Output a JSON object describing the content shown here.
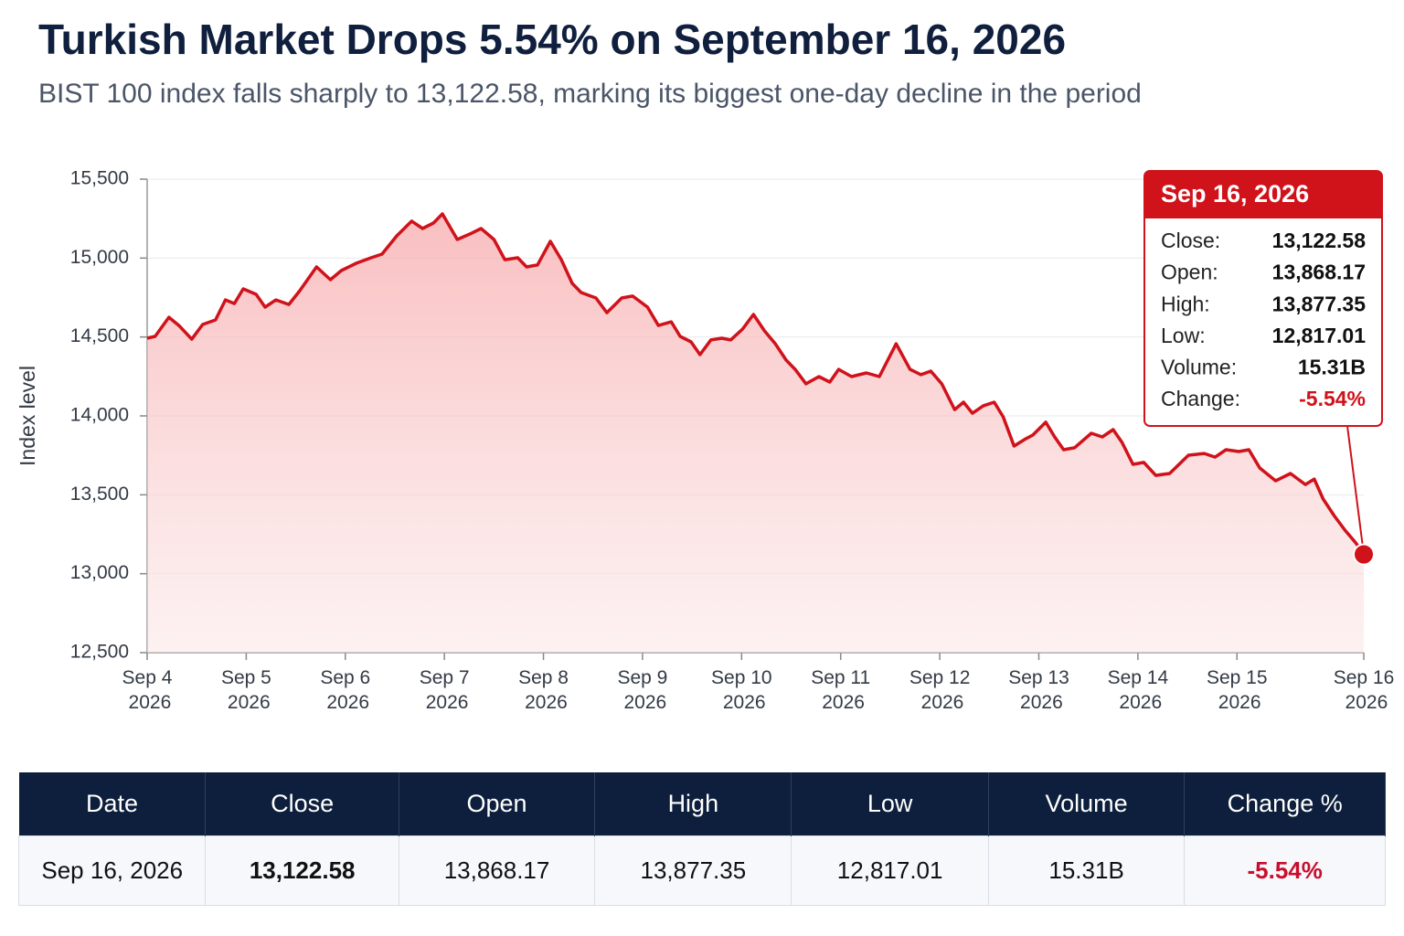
{
  "chart_data": {
    "type": "line",
    "title": "Turkish Market Drops 5.54% on September 16, 2026",
    "subtitle": "BIST 100 index falls sharply to 13,122.58, marking its biggest one-day decline in the period",
    "y_label": "Index level",
    "color": "#d0121b",
    "x": [
      0,
      0.08,
      0.22,
      0.32,
      0.45,
      0.56,
      0.69,
      0.79,
      0.88,
      0.97,
      1.1,
      1.19,
      1.3,
      1.43,
      1.54,
      1.71,
      1.85,
      1.96,
      2.11,
      2.26,
      2.37,
      2.52,
      2.67,
      2.78,
      2.89,
      2.98,
      3.13,
      3.26,
      3.37,
      3.5,
      3.61,
      3.74,
      3.83,
      3.94,
      4.07,
      4.18,
      4.29,
      4.38,
      4.53,
      4.64,
      4.79,
      4.9,
      5.05,
      5.16,
      5.29,
      5.38,
      5.49,
      5.58,
      5.69,
      5.8,
      5.89,
      6.01,
      6.12,
      6.23,
      6.34,
      6.45,
      6.54,
      6.65,
      6.78,
      6.89,
      6.98,
      7.11,
      7.26,
      7.39,
      7.56,
      7.7,
      7.81,
      7.91,
      8.02,
      8.15,
      8.24,
      8.33,
      8.44,
      8.55,
      8.64,
      8.75,
      8.87,
      8.94,
      9.07,
      9.16,
      9.25,
      9.36,
      9.53,
      9.64,
      9.75,
      9.84,
      9.95,
      10.06,
      10.18,
      10.32,
      10.51,
      10.67,
      10.78,
      10.89,
      11.02,
      11.12,
      11.23,
      11.39,
      11.54,
      11.69,
      11.78,
      11.87,
      11.98,
      12.09,
      12.2,
      12.28
    ],
    "values": [
      14492,
      14504,
      14625,
      14573,
      14486,
      14579,
      14608,
      14735,
      14712,
      14805,
      14770,
      14689,
      14735,
      14706,
      14793,
      14944,
      14863,
      14921,
      14967,
      15002,
      15025,
      15141,
      15234,
      15187,
      15222,
      15280,
      15118,
      15153,
      15187,
      15118,
      14990,
      15002,
      14944,
      14956,
      15106,
      14990,
      14840,
      14782,
      14747,
      14654,
      14747,
      14759,
      14689,
      14573,
      14596,
      14504,
      14469,
      14388,
      14481,
      14492,
      14481,
      14550,
      14643,
      14539,
      14457,
      14353,
      14295,
      14203,
      14249,
      14214,
      14295,
      14249,
      14272,
      14249,
      14457,
      14295,
      14261,
      14284,
      14203,
      14040,
      14087,
      14017,
      14064,
      14087,
      13994,
      13809,
      13856,
      13879,
      13960,
      13867,
      13786,
      13798,
      13890,
      13867,
      13913,
      13832,
      13693,
      13705,
      13623,
      13635,
      13751,
      13762,
      13739,
      13786,
      13774,
      13786,
      13670,
      13589,
      13635,
      13565,
      13600,
      13473,
      13369,
      13276,
      13195,
      13122.58
    ],
    "xlim": [
      0,
      12.28
    ],
    "xticks": [
      {
        "value": 0,
        "label": "Sep 4 2026"
      },
      {
        "value": 1,
        "label": "Sep 5 2026"
      },
      {
        "value": 2,
        "label": "Sep 6 2026"
      },
      {
        "value": 3,
        "label": "Sep 7 2026"
      },
      {
        "value": 4,
        "label": "Sep 8 2026"
      },
      {
        "value": 5,
        "label": "Sep 9 2026"
      },
      {
        "value": 6,
        "label": "Sep 10 2026"
      },
      {
        "value": 7,
        "label": "Sep 11 2026"
      },
      {
        "value": 8,
        "label": "Sep 12 2026"
      },
      {
        "value": 9,
        "label": "Sep 13 2026"
      },
      {
        "value": 10,
        "label": "Sep 14 2026"
      },
      {
        "value": 11,
        "label": "Sep 15 2026"
      },
      {
        "value": 12.28,
        "label": "Sep 16 2026"
      }
    ],
    "ylim": [
      12500,
      15500
    ],
    "yticks": [
      {
        "value": 12500,
        "label": "12,500"
      },
      {
        "value": 13000,
        "label": "13,000"
      },
      {
        "value": 13500,
        "label": "13,500"
      },
      {
        "value": 14000,
        "label": "14,000"
      },
      {
        "value": 14500,
        "label": "14,500"
      },
      {
        "value": 15000,
        "label": "15,000"
      },
      {
        "value": 15500,
        "label": "15,500"
      }
    ],
    "grid": true,
    "tooltip": {
      "title": "Sep 16, 2026",
      "rows": [
        {
          "label": "Close:",
          "value": "13,122.58"
        },
        {
          "label": "Open:",
          "value": "13,868.17"
        },
        {
          "label": "High:",
          "value": "13,877.35"
        },
        {
          "label": "Low:",
          "value": "12,817.01"
        },
        {
          "label": "Volume:",
          "value": "15.31B"
        },
        {
          "label": "Change:",
          "value": "-5.54%"
        }
      ]
    }
  },
  "table": {
    "header": [
      "Date",
      "Close",
      "Open",
      "High",
      "Low",
      "Volume",
      "Change %"
    ],
    "rows": [
      [
        "Sep 16, 2026",
        "13,122.58",
        "13,868.17",
        "13,877.35",
        "12,817.01",
        "15.31B",
        "-5.54%"
      ]
    ]
  }
}
